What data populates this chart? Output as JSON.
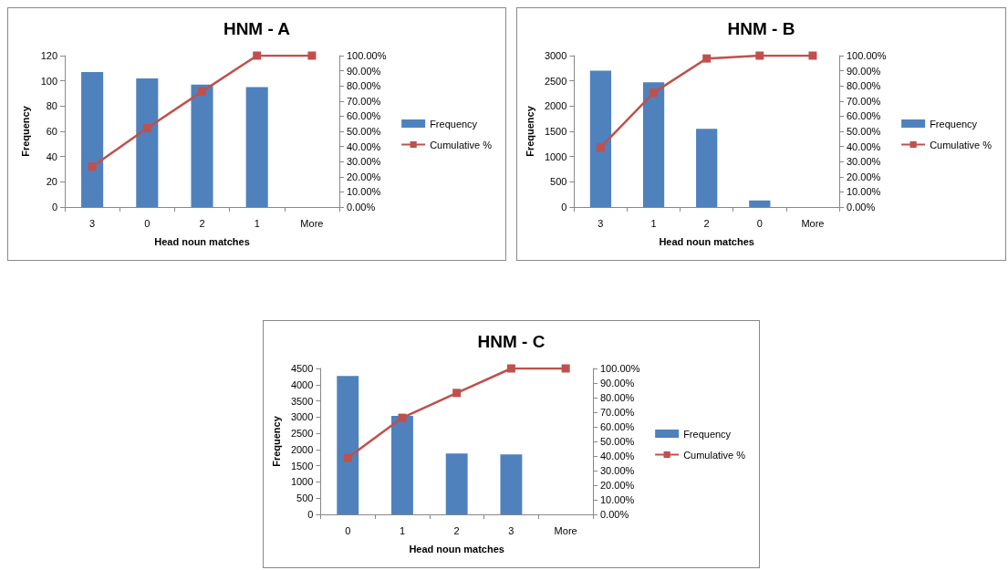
{
  "chart_data": [
    {
      "type": "bar",
      "title": "HNM - A",
      "xlabel": "Head noun matches",
      "ylabel": "Frequency",
      "categories": [
        "3",
        "0",
        "2",
        "1",
        "More"
      ],
      "legend": "right",
      "marker": "square",
      "ylim": [
        0,
        120
      ],
      "yticks": [
        0,
        20,
        40,
        60,
        80,
        100,
        120
      ],
      "y2lim": [
        0,
        100
      ],
      "y2ticks": [
        {
          "value": 0,
          "label": "0.00%"
        },
        {
          "value": 10,
          "label": "10.00%"
        },
        {
          "value": 20,
          "label": "20.00%"
        },
        {
          "value": 30,
          "label": "30.00%"
        },
        {
          "value": 40,
          "label": "40.00%"
        },
        {
          "value": 50,
          "label": "50.00%"
        },
        {
          "value": 60,
          "label": "60.00%"
        },
        {
          "value": 70,
          "label": "70.00%"
        },
        {
          "value": 80,
          "label": "80.00%"
        },
        {
          "value": 90,
          "label": "90.00%"
        },
        {
          "value": 100,
          "label": "100.00%"
        }
      ],
      "series": [
        {
          "name": "Frequency",
          "color": "#4f81bd",
          "values": [
            107,
            102,
            97,
            95,
            0
          ]
        },
        {
          "name": "Cumulative %",
          "type": "line",
          "axis": "y2",
          "color": "#c0504d",
          "values": [
            26.7,
            52.1,
            76.3,
            100,
            100
          ]
        }
      ]
    },
    {
      "type": "bar",
      "title": "HNM - B",
      "xlabel": "Head noun matches",
      "ylabel": "Frequency",
      "categories": [
        "3",
        "1",
        "2",
        "0",
        "More"
      ],
      "legend": "right",
      "marker": "square",
      "ylim": [
        0,
        3000
      ],
      "yticks": [
        0,
        500,
        1000,
        1500,
        2000,
        2500,
        3000
      ],
      "y2lim": [
        0,
        100
      ],
      "y2ticks": [
        {
          "value": 0,
          "label": "0.00%"
        },
        {
          "value": 10,
          "label": "10.00%"
        },
        {
          "value": 20,
          "label": "20.00%"
        },
        {
          "value": 30,
          "label": "30.00%"
        },
        {
          "value": 40,
          "label": "40.00%"
        },
        {
          "value": 50,
          "label": "50.00%"
        },
        {
          "value": 60,
          "label": "60.00%"
        },
        {
          "value": 70,
          "label": "70.00%"
        },
        {
          "value": 80,
          "label": "80.00%"
        },
        {
          "value": 90,
          "label": "90.00%"
        },
        {
          "value": 100,
          "label": "100.00%"
        }
      ],
      "series": [
        {
          "name": "Frequency",
          "color": "#4f81bd",
          "values": [
            2700,
            2470,
            1550,
            130,
            0
          ]
        },
        {
          "name": "Cumulative %",
          "type": "line",
          "axis": "y2",
          "color": "#c0504d",
          "values": [
            39.4,
            75.5,
            98.1,
            100,
            100
          ]
        }
      ]
    },
    {
      "type": "bar",
      "title": "HNM - C",
      "xlabel": "Head noun matches",
      "ylabel": "Frequency",
      "categories": [
        "0",
        "1",
        "2",
        "3",
        "More"
      ],
      "legend": "right",
      "marker": "square",
      "ylim": [
        0,
        4500
      ],
      "yticks": [
        0,
        500,
        1000,
        1500,
        2000,
        2500,
        3000,
        3500,
        4000,
        4500
      ],
      "y2lim": [
        0,
        100
      ],
      "y2ticks": [
        {
          "value": 0,
          "label": "0.00%"
        },
        {
          "value": 10,
          "label": "10.00%"
        },
        {
          "value": 20,
          "label": "20.00%"
        },
        {
          "value": 30,
          "label": "30.00%"
        },
        {
          "value": 40,
          "label": "40.00%"
        },
        {
          "value": 50,
          "label": "50.00%"
        },
        {
          "value": 60,
          "label": "60.00%"
        },
        {
          "value": 70,
          "label": "70.00%"
        },
        {
          "value": 80,
          "label": "80.00%"
        },
        {
          "value": 90,
          "label": "90.00%"
        },
        {
          "value": 100,
          "label": "100.00%"
        }
      ],
      "series": [
        {
          "name": "Frequency",
          "color": "#4f81bd",
          "values": [
            4270,
            3040,
            1880,
            1850,
            0
          ]
        },
        {
          "name": "Cumulative %",
          "type": "line",
          "axis": "y2",
          "color": "#c0504d",
          "values": [
            38.7,
            66.2,
            83.2,
            100,
            100
          ]
        }
      ]
    }
  ]
}
